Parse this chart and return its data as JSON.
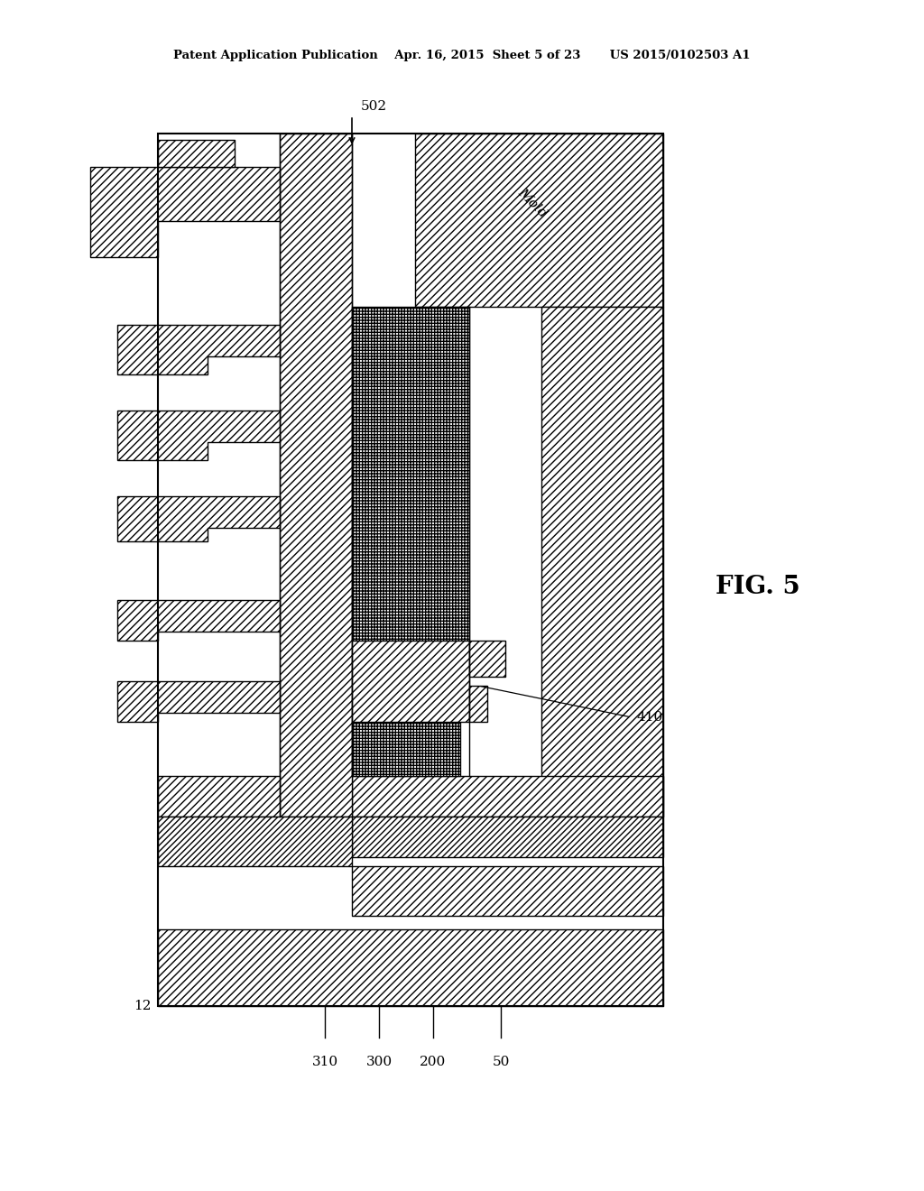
{
  "bg_color": "#ffffff",
  "lc": "#000000",
  "header": "Patent Application Publication    Apr. 16, 2015  Sheet 5 of 23       US 2015/0102503 A1",
  "fig_label": "FIG. 5",
  "label_12": "12",
  "label_502": "502",
  "label_410": "410",
  "label_310": "310",
  "label_300": "300",
  "label_200": "200",
  "label_50": "50",
  "mold_text": "Mold"
}
